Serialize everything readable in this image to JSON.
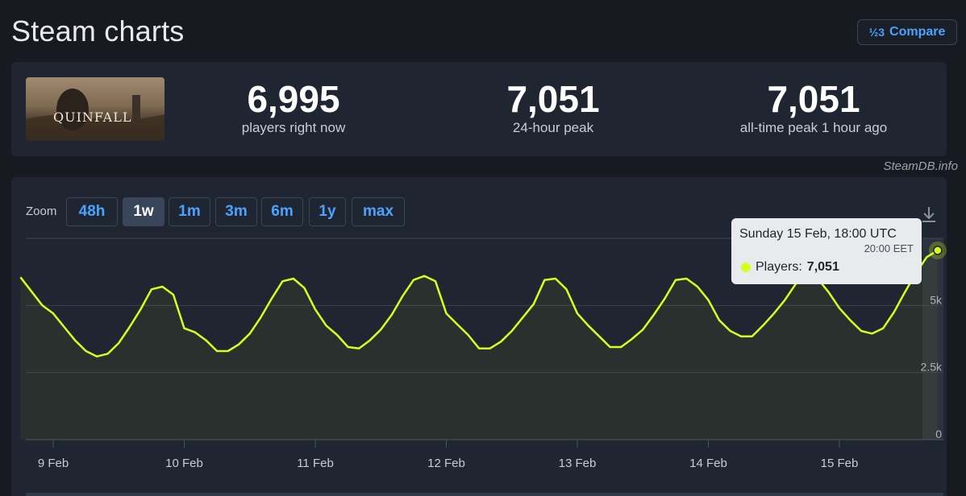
{
  "page": {
    "title": "Steam charts"
  },
  "compare": {
    "icon": "fraction-icon",
    "icon_glyph": "½3",
    "label": "Compare"
  },
  "game": {
    "name": "THE QUINFALL",
    "logo_text": "QUINFALL"
  },
  "stats": [
    {
      "value": "6,995",
      "label": "players right now"
    },
    {
      "value": "7,051",
      "label": "24-hour peak"
    },
    {
      "value": "7,051",
      "label": "all-time peak 1 hour ago"
    }
  ],
  "attribution": "SteamDB.info",
  "zoom": {
    "label": "Zoom",
    "options": [
      "48h",
      "1w",
      "1m",
      "3m",
      "6m",
      "1y",
      "max"
    ],
    "active": "1w"
  },
  "tooltip": {
    "title": "Sunday 15 Feb, 18:00 UTC",
    "subtitle": "20:00 EET",
    "series_label": "Players: ",
    "value": "7,051"
  },
  "colors": {
    "line": "#d6ff1c",
    "accent": "#4aa3ff",
    "background": "#171a21",
    "card": "#202631"
  },
  "chart_data": {
    "type": "line",
    "title": "",
    "xlabel": "",
    "ylabel": "",
    "x_ticks": [
      "9 Feb",
      "10 Feb",
      "11 Feb",
      "12 Feb",
      "13 Feb",
      "14 Feb",
      "15 Feb"
    ],
    "y_ticks": [
      "0",
      "2.5k",
      "5k"
    ],
    "ylim": [
      0,
      7500
    ],
    "grid": true,
    "legend": "none",
    "series": [
      {
        "x": [
          "8 Feb 18:00",
          "8 Feb 22:00",
          "9 Feb 00:00",
          "9 Feb 02:00",
          "9 Feb 04:00",
          "9 Feb 06:00",
          "9 Feb 08:00",
          "9 Feb 10:00",
          "9 Feb 12:00",
          "9 Feb 14:00",
          "9 Feb 16:00",
          "9 Feb 18:00",
          "9 Feb 20:00",
          "9 Feb 22:00",
          "10 Feb 00:00",
          "10 Feb 02:00",
          "10 Feb 04:00",
          "10 Feb 06:00",
          "10 Feb 08:00",
          "10 Feb 10:00",
          "10 Feb 12:00",
          "10 Feb 14:00",
          "10 Feb 16:00",
          "10 Feb 18:00",
          "10 Feb 20:00",
          "10 Feb 22:00",
          "11 Feb 00:00",
          "11 Feb 02:00",
          "11 Feb 04:00",
          "11 Feb 06:00",
          "11 Feb 08:00",
          "11 Feb 10:00",
          "11 Feb 12:00",
          "11 Feb 14:00",
          "11 Feb 16:00",
          "11 Feb 18:00",
          "11 Feb 20:00",
          "11 Feb 22:00",
          "12 Feb 00:00",
          "12 Feb 02:00",
          "12 Feb 04:00",
          "12 Feb 06:00",
          "12 Feb 08:00",
          "12 Feb 10:00",
          "12 Feb 12:00",
          "12 Feb 14:00",
          "12 Feb 16:00",
          "12 Feb 18:00",
          "12 Feb 20:00",
          "12 Feb 22:00",
          "13 Feb 00:00",
          "13 Feb 02:00",
          "13 Feb 04:00",
          "13 Feb 06:00",
          "13 Feb 08:00",
          "13 Feb 10:00",
          "13 Feb 12:00",
          "13 Feb 14:00",
          "13 Feb 16:00",
          "13 Feb 18:00",
          "13 Feb 20:00",
          "13 Feb 22:00",
          "14 Feb 00:00",
          "14 Feb 02:00",
          "14 Feb 04:00",
          "14 Feb 06:00",
          "14 Feb 08:00",
          "14 Feb 10:00",
          "14 Feb 12:00",
          "14 Feb 14:00",
          "14 Feb 16:00",
          "14 Feb 18:00",
          "14 Feb 20:00",
          "14 Feb 22:00",
          "15 Feb 00:00",
          "15 Feb 02:00",
          "15 Feb 04:00",
          "15 Feb 06:00",
          "15 Feb 08:00",
          "15 Feb 10:00",
          "15 Feb 12:00",
          "15 Feb 14:00",
          "15 Feb 16:00",
          "15 Feb 18:00"
        ],
        "y": [
          6050,
          5000,
          4700,
          4200,
          3700,
          3300,
          3100,
          3200,
          3600,
          4200,
          4850,
          5600,
          5700,
          5400,
          4150,
          4000,
          3700,
          3300,
          3300,
          3550,
          3950,
          4550,
          5250,
          5900,
          6000,
          5650,
          4850,
          4250,
          3900,
          3450,
          3400,
          3700,
          4100,
          4650,
          5350,
          5950,
          6100,
          5900,
          4700,
          4300,
          3900,
          3400,
          3400,
          3650,
          4050,
          4550,
          5050,
          5950,
          6000,
          5600,
          4700,
          4250,
          3850,
          3450,
          3450,
          3750,
          4100,
          4650,
          5250,
          5950,
          6000,
          5700,
          5200,
          4450,
          4050,
          3850,
          3850,
          4250,
          4700,
          5200,
          5800,
          6100,
          6000,
          5500,
          4900,
          4450,
          4050,
          3950,
          4150,
          4750,
          5500,
          6200,
          6800,
          7051
        ]
      }
    ]
  }
}
